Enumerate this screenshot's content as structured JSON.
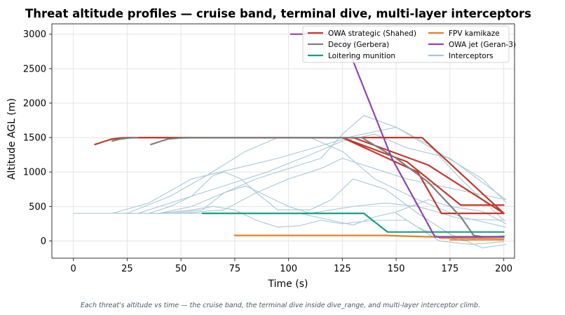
{
  "chart_data": {
    "type": "line",
    "title": "Threat altitude profiles — cruise band, terminal dive, multi-layer interceptors",
    "xlabel": "Time (s)",
    "ylabel": "Altitude AGL (m)",
    "xlim": [
      -10,
      205
    ],
    "ylim": [
      -250,
      3150
    ],
    "xticks": [
      0,
      25,
      50,
      75,
      100,
      125,
      150,
      175,
      200
    ],
    "yticks": [
      0,
      500,
      1000,
      1500,
      2000,
      2500,
      3000
    ],
    "grid": true,
    "legend_position": "top-right",
    "caption": "Each threat's altitude vs time — the cruise band, the terminal dive inside dive_range, and multi-layer interceptor climb.",
    "legend": [
      {
        "label": "OWA strategic (Shahed)",
        "color": "#c0392b"
      },
      {
        "label": "FPV kamikaze",
        "color": "#e67e22"
      },
      {
        "label": "Decoy (Gerbera)",
        "color": "#7f7f7f"
      },
      {
        "label": "OWA jet (Geran-3)",
        "color": "#8e44ad"
      },
      {
        "label": "Loitering munition",
        "color": "#16a085"
      },
      {
        "label": "Interceptors",
        "color": "#a9c8d8"
      }
    ],
    "series": [
      {
        "name": "OWA strategic (Shahed)",
        "color": "#c0392b",
        "width": 2.2,
        "points": [
          [
            10,
            1400
          ],
          [
            14,
            1440
          ],
          [
            18,
            1480
          ],
          [
            22,
            1495
          ],
          [
            26,
            1500
          ],
          [
            125,
            1500
          ],
          [
            155,
            1150
          ],
          [
            180,
            520
          ],
          [
            200,
            520
          ]
        ]
      },
      {
        "name": "OWA strategic (Shahed)",
        "color": "#c0392b",
        "width": 2.2,
        "points": [
          [
            26,
            1500
          ],
          [
            130,
            1500
          ],
          [
            165,
            1100
          ],
          [
            200,
            400
          ]
        ]
      },
      {
        "name": "OWA strategic (Shahed)",
        "color": "#c0392b",
        "width": 2.2,
        "points": [
          [
            125,
            1500
          ],
          [
            160,
            1000
          ],
          [
            171,
            400
          ],
          [
            200,
            400
          ]
        ]
      },
      {
        "name": "OWA strategic (Shahed)",
        "color": "#c0392b",
        "width": 2.2,
        "points": [
          [
            134,
            1500
          ],
          [
            162,
            1500
          ],
          [
            200,
            400
          ]
        ]
      },
      {
        "name": "Decoy (Gerbera)",
        "color": "#7f7f7f",
        "width": 2.2,
        "points": [
          [
            18,
            1450
          ],
          [
            22,
            1480
          ],
          [
            26,
            1495
          ],
          [
            30,
            1500
          ]
        ]
      },
      {
        "name": "Decoy (Gerbera)",
        "color": "#7f7f7f",
        "width": 2.2,
        "points": [
          [
            36,
            1400
          ],
          [
            40,
            1440
          ],
          [
            44,
            1480
          ],
          [
            50,
            1495
          ],
          [
            58,
            1500
          ],
          [
            134,
            1500
          ],
          [
            150,
            1200
          ],
          [
            165,
            850
          ],
          [
            180,
            350
          ],
          [
            186,
            80
          ],
          [
            190,
            60
          ],
          [
            200,
            60
          ]
        ]
      },
      {
        "name": "Loitering munition",
        "color": "#16a085",
        "width": 2.2,
        "points": [
          [
            60,
            400
          ],
          [
            120,
            400
          ],
          [
            135,
            400
          ],
          [
            146,
            130
          ],
          [
            200,
            130
          ]
        ]
      },
      {
        "name": "FPV kamikaze",
        "color": "#e67e22",
        "width": 2.2,
        "points": [
          [
            75,
            80
          ],
          [
            145,
            80
          ],
          [
            155,
            70
          ],
          [
            165,
            60
          ],
          [
            175,
            55
          ],
          [
            200,
            55
          ]
        ]
      },
      {
        "name": "FPV kamikaze",
        "color": "#e67e22",
        "width": 1.6,
        "points": [
          [
            170,
            40
          ],
          [
            200,
            30
          ]
        ]
      },
      {
        "name": "FPV kamikaze",
        "color": "#e67e22",
        "width": 1.6,
        "points": [
          [
            175,
            15
          ],
          [
            200,
            15
          ]
        ]
      },
      {
        "name": "OWA jet (Geran-3)",
        "color": "#8e44ad",
        "width": 2.2,
        "points": [
          [
            101,
            3000
          ],
          [
            125,
            3000
          ],
          [
            148,
            1200
          ],
          [
            168,
            60
          ],
          [
            200,
            60
          ]
        ]
      },
      {
        "name": "Interceptors",
        "color": "#a9c8d8",
        "width": 1.1,
        "points": [
          [
            0,
            400
          ],
          [
            120,
            400
          ]
        ]
      },
      {
        "name": "Interceptors",
        "color": "#a9c8d8",
        "width": 1.1,
        "points": [
          [
            18,
            400
          ],
          [
            35,
            550
          ],
          [
            55,
            900
          ],
          [
            75,
            1050
          ],
          [
            95,
            1200
          ],
          [
            115,
            1380
          ],
          [
            130,
            1520
          ],
          [
            150,
            1650
          ],
          [
            170,
            1280
          ],
          [
            190,
            900
          ],
          [
            201,
            560
          ]
        ]
      },
      {
        "name": "Interceptors",
        "color": "#a9c8d8",
        "width": 1.1,
        "points": [
          [
            25,
            400
          ],
          [
            45,
            650
          ],
          [
            62,
            950
          ],
          [
            80,
            1300
          ],
          [
            95,
            1500
          ],
          [
            110,
            1500
          ],
          [
            125,
            1300
          ],
          [
            140,
            900
          ],
          [
            160,
            600
          ],
          [
            180,
            350
          ],
          [
            201,
            200
          ]
        ]
      },
      {
        "name": "Interceptors",
        "color": "#a9c8d8",
        "width": 1.1,
        "points": [
          [
            30,
            400
          ],
          [
            50,
            600
          ],
          [
            70,
            800
          ],
          [
            90,
            1000
          ],
          [
            110,
            1250
          ],
          [
            125,
            1450
          ],
          [
            140,
            1550
          ],
          [
            155,
            1350
          ],
          [
            175,
            1200
          ],
          [
            190,
            850
          ],
          [
            201,
            600
          ]
        ]
      },
      {
        "name": "Interceptors",
        "color": "#a9c8d8",
        "width": 1.1,
        "points": [
          [
            40,
            400
          ],
          [
            55,
            500
          ],
          [
            70,
            700
          ],
          [
            85,
            900
          ],
          [
            100,
            1050
          ],
          [
            115,
            1200
          ],
          [
            125,
            1550
          ],
          [
            135,
            1820
          ],
          [
            150,
            1650
          ],
          [
            165,
            1400
          ],
          [
            180,
            900
          ],
          [
            200,
            300
          ]
        ]
      },
      {
        "name": "Interceptors",
        "color": "#a9c8d8",
        "width": 1.1,
        "points": [
          [
            35,
            400
          ],
          [
            45,
            500
          ],
          [
            55,
            650
          ],
          [
            65,
            950
          ],
          [
            70,
            1000
          ],
          [
            78,
            900
          ],
          [
            85,
            700
          ],
          [
            95,
            450
          ],
          [
            110,
            450
          ],
          [
            120,
            600
          ],
          [
            130,
            900
          ],
          [
            145,
            750
          ],
          [
            160,
            400
          ],
          [
            175,
            100
          ],
          [
            190,
            -100
          ],
          [
            201,
            -50
          ]
        ]
      },
      {
        "name": "Interceptors",
        "color": "#a9c8d8",
        "width": 1.1,
        "points": [
          [
            40,
            400
          ],
          [
            55,
            450
          ],
          [
            65,
            500
          ],
          [
            75,
            450
          ],
          [
            85,
            300
          ],
          [
            95,
            200
          ],
          [
            105,
            220
          ],
          [
            115,
            300
          ],
          [
            125,
            250
          ],
          [
            140,
            300
          ],
          [
            155,
            300
          ],
          [
            170,
            0
          ],
          [
            185,
            -50
          ],
          [
            200,
            -10
          ]
        ]
      },
      {
        "name": "Interceptors",
        "color": "#a9c8d8",
        "width": 1.1,
        "points": [
          [
            20,
            400
          ],
          [
            45,
            400
          ],
          [
            60,
            450
          ],
          [
            70,
            700
          ],
          [
            80,
            800
          ],
          [
            90,
            650
          ],
          [
            100,
            500
          ],
          [
            110,
            400
          ],
          [
            120,
            450
          ],
          [
            130,
            500
          ],
          [
            145,
            550
          ],
          [
            160,
            500
          ],
          [
            180,
            320
          ],
          [
            201,
            300
          ]
        ]
      },
      {
        "name": "Interceptors",
        "color": "#a9c8d8",
        "width": 1.1,
        "points": [
          [
            50,
            400
          ],
          [
            70,
            450
          ],
          [
            85,
            700
          ],
          [
            100,
            900
          ],
          [
            115,
            1050
          ],
          [
            125,
            1200
          ],
          [
            140,
            1050
          ],
          [
            155,
            900
          ],
          [
            170,
            800
          ],
          [
            185,
            700
          ],
          [
            201,
            600
          ]
        ]
      },
      {
        "name": "Interceptors",
        "color": "#a9c8d8",
        "width": 1.1,
        "points": [
          [
            105,
            400
          ],
          [
            120,
            300
          ],
          [
            130,
            230
          ],
          [
            140,
            350
          ],
          [
            150,
            420
          ],
          [
            165,
            600
          ],
          [
            175,
            500
          ],
          [
            190,
            430
          ],
          [
            201,
            250
          ]
        ]
      },
      {
        "name": "Interceptors",
        "color": "#a9c8d8",
        "width": 1.1,
        "points": [
          [
            150,
            400
          ],
          [
            160,
            200
          ],
          [
            170,
            60
          ],
          [
            182,
            0
          ],
          [
            190,
            50
          ],
          [
            201,
            80
          ]
        ]
      }
    ]
  }
}
